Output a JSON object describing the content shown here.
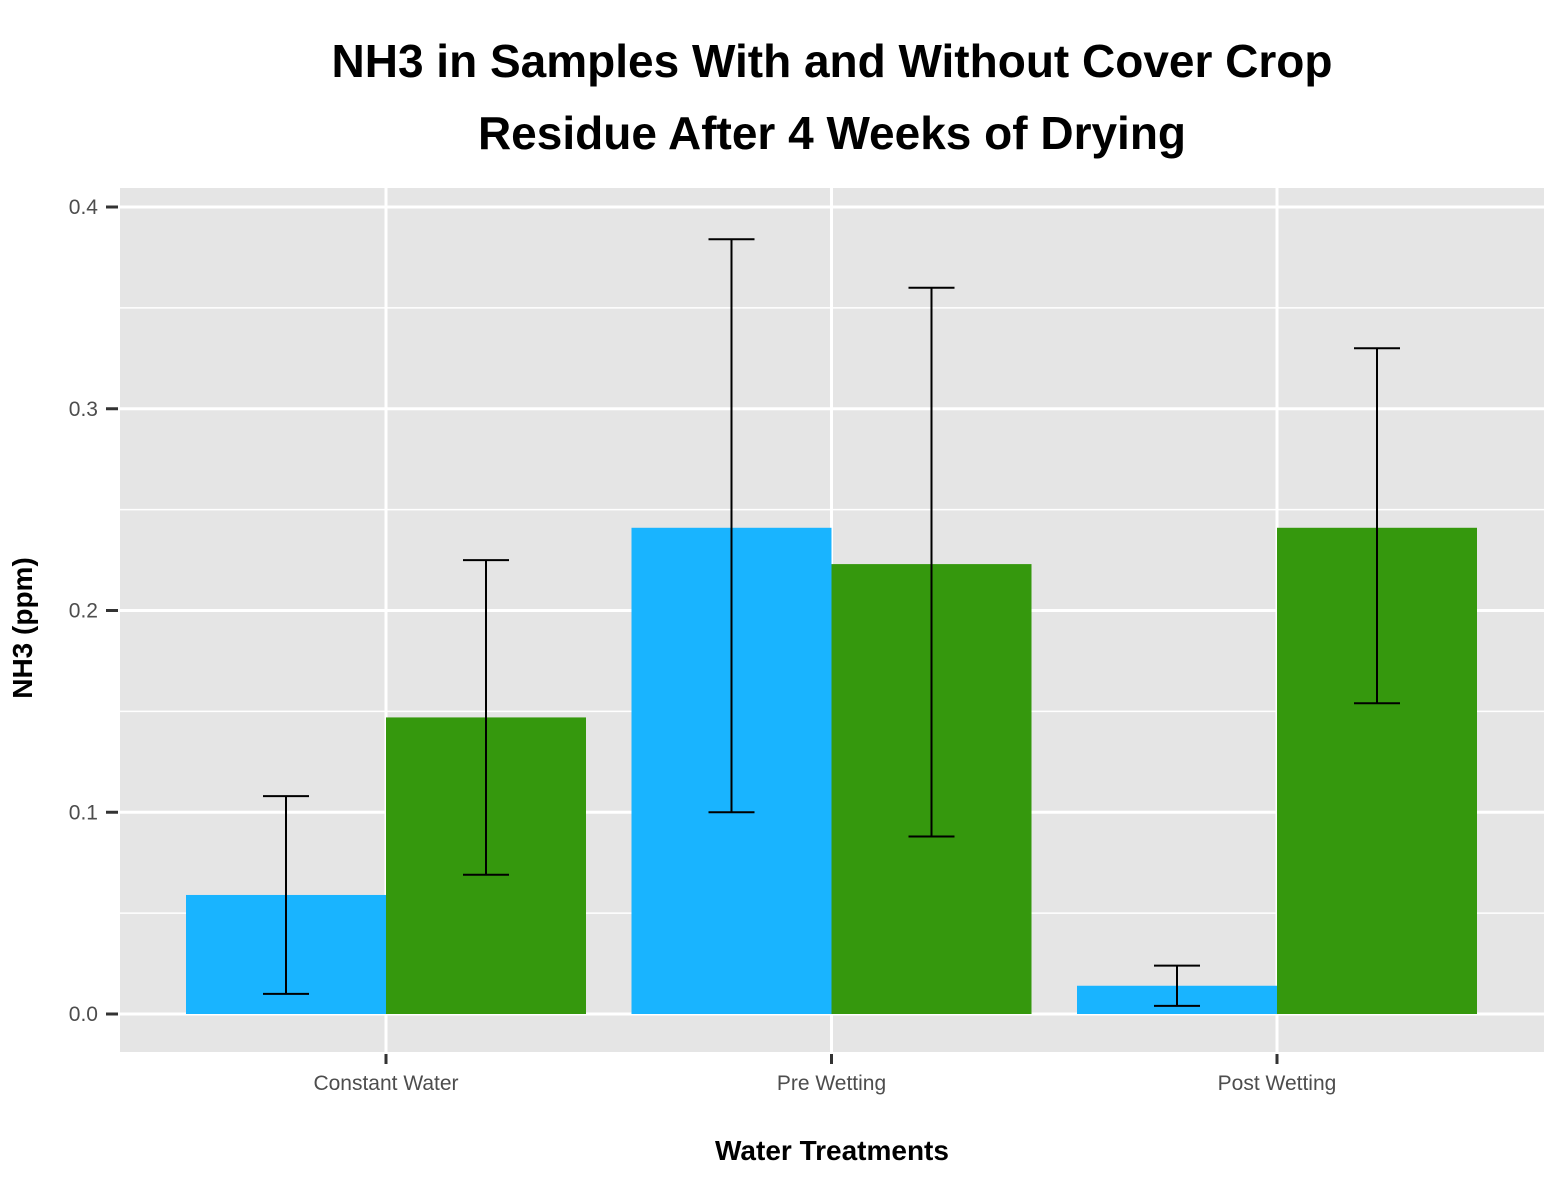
{
  "chart_data": {
    "type": "bar",
    "title_lines": [
      "NH3 in Samples With and Without Cover Crop",
      "Residue After 4 Weeks of Drying"
    ],
    "xlabel": "Water Treatments",
    "ylabel": "NH3 (ppm)",
    "categories": [
      "Constant Water",
      "Pre Wetting",
      "Post Wetting"
    ],
    "ylim": [
      -0.0185,
      0.4
    ],
    "yticks": [
      0.0,
      0.1,
      0.2,
      0.3,
      0.4
    ],
    "ytick_labels": [
      "0.0",
      "0.1",
      "0.2",
      "0.3",
      "0.4"
    ],
    "grid": true,
    "legend": "none",
    "series": [
      {
        "color": "#19b4ff",
        "values": [
          0.059,
          0.241,
          0.014
        ],
        "error_low": [
          0.01,
          0.1,
          0.004
        ],
        "error_high": [
          0.108,
          0.384,
          0.024
        ]
      },
      {
        "color": "#35980d",
        "values": [
          0.147,
          0.223,
          0.241
        ],
        "error_low": [
          0.069,
          0.088,
          0.154
        ],
        "error_high": [
          0.225,
          0.36,
          0.33
        ]
      }
    ]
  }
}
